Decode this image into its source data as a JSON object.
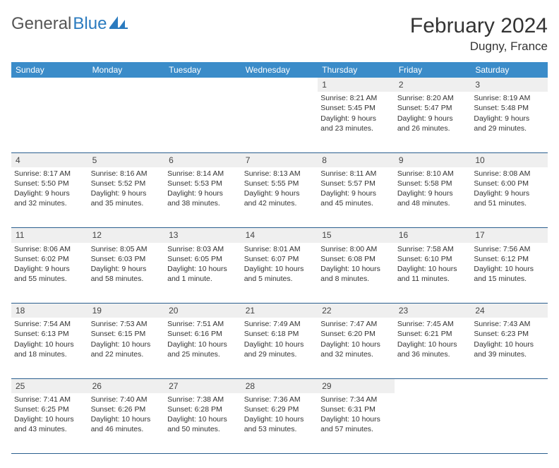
{
  "brand": {
    "general": "General",
    "blue": "Blue"
  },
  "title": "February 2024",
  "location": "Dugny, France",
  "colors": {
    "header_bg": "#3b8cc9",
    "header_text": "#ffffff",
    "daynum_bg": "#efefef",
    "row_divider": "#2b5f8f",
    "logo_accent": "#2b7bbf",
    "logo_text": "#555555"
  },
  "weekdays": [
    "Sunday",
    "Monday",
    "Tuesday",
    "Wednesday",
    "Thursday",
    "Friday",
    "Saturday"
  ],
  "weeks": [
    {
      "nums": [
        "",
        "",
        "",
        "",
        "1",
        "2",
        "3"
      ],
      "cells": [
        null,
        null,
        null,
        null,
        {
          "sunrise": "Sunrise: 8:21 AM",
          "sunset": "Sunset: 5:45 PM",
          "day1": "Daylight: 9 hours",
          "day2": "and 23 minutes."
        },
        {
          "sunrise": "Sunrise: 8:20 AM",
          "sunset": "Sunset: 5:47 PM",
          "day1": "Daylight: 9 hours",
          "day2": "and 26 minutes."
        },
        {
          "sunrise": "Sunrise: 8:19 AM",
          "sunset": "Sunset: 5:48 PM",
          "day1": "Daylight: 9 hours",
          "day2": "and 29 minutes."
        }
      ]
    },
    {
      "nums": [
        "4",
        "5",
        "6",
        "7",
        "8",
        "9",
        "10"
      ],
      "cells": [
        {
          "sunrise": "Sunrise: 8:17 AM",
          "sunset": "Sunset: 5:50 PM",
          "day1": "Daylight: 9 hours",
          "day2": "and 32 minutes."
        },
        {
          "sunrise": "Sunrise: 8:16 AM",
          "sunset": "Sunset: 5:52 PM",
          "day1": "Daylight: 9 hours",
          "day2": "and 35 minutes."
        },
        {
          "sunrise": "Sunrise: 8:14 AM",
          "sunset": "Sunset: 5:53 PM",
          "day1": "Daylight: 9 hours",
          "day2": "and 38 minutes."
        },
        {
          "sunrise": "Sunrise: 8:13 AM",
          "sunset": "Sunset: 5:55 PM",
          "day1": "Daylight: 9 hours",
          "day2": "and 42 minutes."
        },
        {
          "sunrise": "Sunrise: 8:11 AM",
          "sunset": "Sunset: 5:57 PM",
          "day1": "Daylight: 9 hours",
          "day2": "and 45 minutes."
        },
        {
          "sunrise": "Sunrise: 8:10 AM",
          "sunset": "Sunset: 5:58 PM",
          "day1": "Daylight: 9 hours",
          "day2": "and 48 minutes."
        },
        {
          "sunrise": "Sunrise: 8:08 AM",
          "sunset": "Sunset: 6:00 PM",
          "day1": "Daylight: 9 hours",
          "day2": "and 51 minutes."
        }
      ]
    },
    {
      "nums": [
        "11",
        "12",
        "13",
        "14",
        "15",
        "16",
        "17"
      ],
      "cells": [
        {
          "sunrise": "Sunrise: 8:06 AM",
          "sunset": "Sunset: 6:02 PM",
          "day1": "Daylight: 9 hours",
          "day2": "and 55 minutes."
        },
        {
          "sunrise": "Sunrise: 8:05 AM",
          "sunset": "Sunset: 6:03 PM",
          "day1": "Daylight: 9 hours",
          "day2": "and 58 minutes."
        },
        {
          "sunrise": "Sunrise: 8:03 AM",
          "sunset": "Sunset: 6:05 PM",
          "day1": "Daylight: 10 hours",
          "day2": "and 1 minute."
        },
        {
          "sunrise": "Sunrise: 8:01 AM",
          "sunset": "Sunset: 6:07 PM",
          "day1": "Daylight: 10 hours",
          "day2": "and 5 minutes."
        },
        {
          "sunrise": "Sunrise: 8:00 AM",
          "sunset": "Sunset: 6:08 PM",
          "day1": "Daylight: 10 hours",
          "day2": "and 8 minutes."
        },
        {
          "sunrise": "Sunrise: 7:58 AM",
          "sunset": "Sunset: 6:10 PM",
          "day1": "Daylight: 10 hours",
          "day2": "and 11 minutes."
        },
        {
          "sunrise": "Sunrise: 7:56 AM",
          "sunset": "Sunset: 6:12 PM",
          "day1": "Daylight: 10 hours",
          "day2": "and 15 minutes."
        }
      ]
    },
    {
      "nums": [
        "18",
        "19",
        "20",
        "21",
        "22",
        "23",
        "24"
      ],
      "cells": [
        {
          "sunrise": "Sunrise: 7:54 AM",
          "sunset": "Sunset: 6:13 PM",
          "day1": "Daylight: 10 hours",
          "day2": "and 18 minutes."
        },
        {
          "sunrise": "Sunrise: 7:53 AM",
          "sunset": "Sunset: 6:15 PM",
          "day1": "Daylight: 10 hours",
          "day2": "and 22 minutes."
        },
        {
          "sunrise": "Sunrise: 7:51 AM",
          "sunset": "Sunset: 6:16 PM",
          "day1": "Daylight: 10 hours",
          "day2": "and 25 minutes."
        },
        {
          "sunrise": "Sunrise: 7:49 AM",
          "sunset": "Sunset: 6:18 PM",
          "day1": "Daylight: 10 hours",
          "day2": "and 29 minutes."
        },
        {
          "sunrise": "Sunrise: 7:47 AM",
          "sunset": "Sunset: 6:20 PM",
          "day1": "Daylight: 10 hours",
          "day2": "and 32 minutes."
        },
        {
          "sunrise": "Sunrise: 7:45 AM",
          "sunset": "Sunset: 6:21 PM",
          "day1": "Daylight: 10 hours",
          "day2": "and 36 minutes."
        },
        {
          "sunrise": "Sunrise: 7:43 AM",
          "sunset": "Sunset: 6:23 PM",
          "day1": "Daylight: 10 hours",
          "day2": "and 39 minutes."
        }
      ]
    },
    {
      "nums": [
        "25",
        "26",
        "27",
        "28",
        "29",
        "",
        ""
      ],
      "cells": [
        {
          "sunrise": "Sunrise: 7:41 AM",
          "sunset": "Sunset: 6:25 PM",
          "day1": "Daylight: 10 hours",
          "day2": "and 43 minutes."
        },
        {
          "sunrise": "Sunrise: 7:40 AM",
          "sunset": "Sunset: 6:26 PM",
          "day1": "Daylight: 10 hours",
          "day2": "and 46 minutes."
        },
        {
          "sunrise": "Sunrise: 7:38 AM",
          "sunset": "Sunset: 6:28 PM",
          "day1": "Daylight: 10 hours",
          "day2": "and 50 minutes."
        },
        {
          "sunrise": "Sunrise: 7:36 AM",
          "sunset": "Sunset: 6:29 PM",
          "day1": "Daylight: 10 hours",
          "day2": "and 53 minutes."
        },
        {
          "sunrise": "Sunrise: 7:34 AM",
          "sunset": "Sunset: 6:31 PM",
          "day1": "Daylight: 10 hours",
          "day2": "and 57 minutes."
        },
        null,
        null
      ]
    }
  ]
}
